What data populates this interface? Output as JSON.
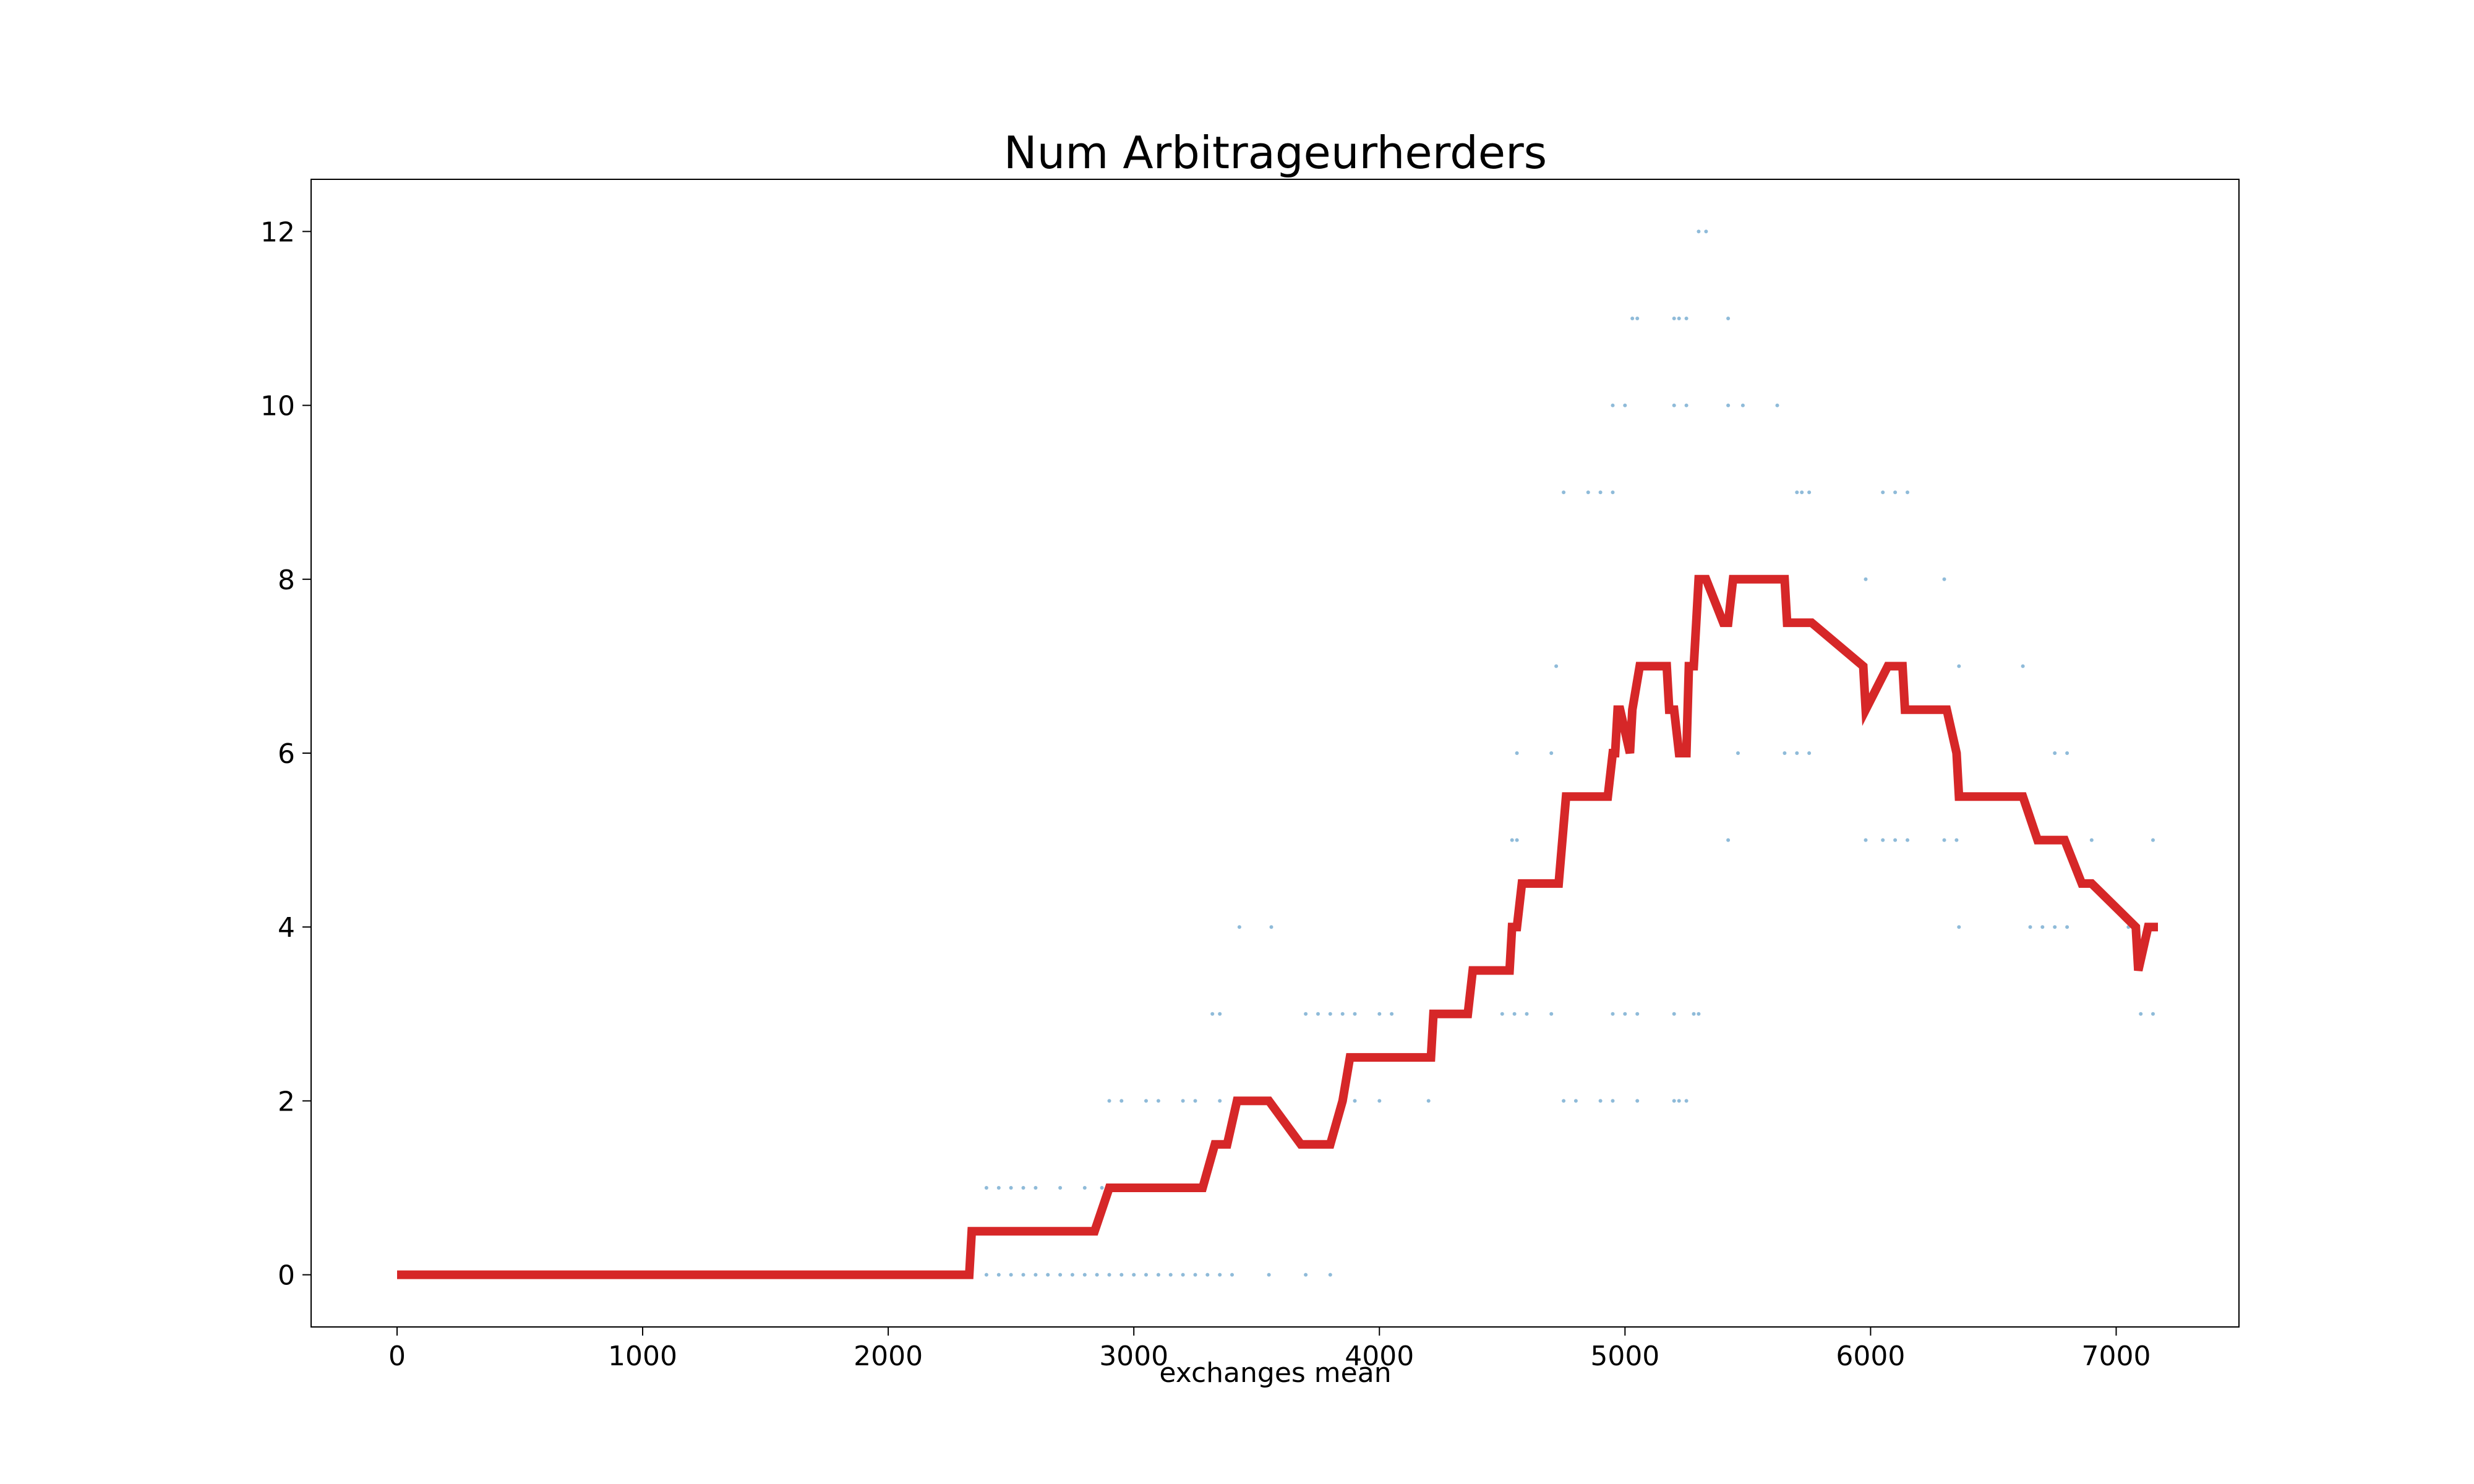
{
  "chart_data": {
    "type": "line",
    "title": "Num Arbitrageurherders",
    "xlabel": "exchanges mean",
    "ylabel": "",
    "xlim": [
      -350,
      7500
    ],
    "ylim": [
      -0.6,
      12.6
    ],
    "xticks": [
      0,
      1000,
      2000,
      3000,
      4000,
      5000,
      6000,
      7000
    ],
    "yticks": [
      0,
      2,
      4,
      6,
      8,
      10,
      12
    ],
    "grid": false,
    "line_color": "#d62728",
    "scatter_color": "#1f77b4",
    "series": [
      {
        "type": "line",
        "x": [
          0,
          2330,
          2340,
          2840,
          2900,
          3280,
          3330,
          3380,
          3420,
          3550,
          3680,
          3800,
          3850,
          3880,
          4210,
          4220,
          4360,
          4380,
          4530,
          4540,
          4560,
          4580,
          4730,
          4760,
          4930,
          4950,
          4960,
          4970,
          4980,
          5020,
          5030,
          5060,
          5170,
          5180,
          5200,
          5220,
          5250,
          5260,
          5280,
          5290,
          5300,
          5330,
          5400,
          5420,
          5440,
          5460,
          5470,
          5480,
          5650,
          5660,
          5760,
          5970,
          5980,
          6070,
          6130,
          6140,
          6310,
          6350,
          6360,
          6620,
          6680,
          6790,
          6860,
          6900,
          7080,
          7090,
          7130,
          7170
        ],
        "y": [
          0,
          0,
          0.5,
          0.5,
          1,
          1,
          1.5,
          1.5,
          2,
          2,
          1.5,
          1.5,
          2,
          2.5,
          2.5,
          3,
          3,
          3.5,
          3.5,
          4,
          4,
          4.5,
          4.5,
          5.5,
          5.5,
          6,
          6,
          6.5,
          6.5,
          6,
          6.5,
          7,
          7,
          6.5,
          6.5,
          6,
          6,
          7,
          7,
          7.5,
          8,
          8,
          7.5,
          7.5,
          8,
          8,
          8,
          8,
          8,
          7.5,
          7.5,
          7,
          6.5,
          7,
          7,
          6.5,
          6.5,
          6,
          5.5,
          5.5,
          5,
          5,
          4.5,
          4.5,
          4,
          3.5,
          4,
          4
        ]
      },
      {
        "type": "scatter",
        "x": [
          2400,
          2450,
          2500,
          2550,
          2600,
          2650,
          2700,
          2750,
          2800,
          2850,
          2900,
          2950,
          3000,
          3050,
          3100,
          3150,
          3200,
          3250,
          3300,
          3350,
          3400,
          3550,
          3700,
          3800,
          2400,
          2450,
          2500,
          2550,
          2600,
          2700,
          2800,
          2870,
          2900,
          2950,
          3050,
          3100,
          3200,
          3250,
          3350,
          3850,
          3900,
          4000,
          4200,
          4750,
          4800,
          4900,
          4950,
          5050,
          5200,
          5220,
          5250,
          3320,
          3350,
          3700,
          3750,
          3800,
          3850,
          3900,
          4000,
          4050,
          4500,
          4550,
          4600,
          4700,
          4950,
          5000,
          5050,
          5200,
          5280,
          5300,
          3430,
          3560,
          4550,
          6360,
          6650,
          6700,
          6750,
          6800,
          7050,
          4540,
          4560,
          5420,
          5980,
          6050,
          6100,
          6150,
          6300,
          6350,
          6900,
          7150,
          4560,
          4700,
          5460,
          5650,
          5700,
          5750,
          6750,
          6800,
          4720,
          6360,
          6620,
          5980,
          6300,
          4750,
          4850,
          4900,
          4950,
          5700,
          5720,
          5750,
          6050,
          6100,
          6150,
          4950,
          5000,
          5200,
          5250,
          5420,
          5480,
          5620,
          5030,
          5050,
          5200,
          5220,
          5250,
          5420,
          5300,
          5330,
          7100,
          7150
        ],
        "y": [
          0,
          0,
          0,
          0,
          0,
          0,
          0,
          0,
          0,
          0,
          0,
          0,
          0,
          0,
          0,
          0,
          0,
          0,
          0,
          0,
          0,
          0,
          0,
          0,
          1,
          1,
          1,
          1,
          1,
          1,
          1,
          1,
          2,
          2,
          2,
          2,
          2,
          2,
          2,
          2,
          2,
          2,
          2,
          2,
          2,
          2,
          2,
          2,
          2,
          2,
          2,
          3,
          3,
          3,
          3,
          3,
          3,
          3,
          3,
          3,
          3,
          3,
          3,
          3,
          3,
          3,
          3,
          3,
          3,
          3,
          4,
          4,
          4,
          4,
          4,
          4,
          4,
          4,
          4,
          5,
          5,
          5,
          5,
          5,
          5,
          5,
          5,
          5,
          5,
          5,
          6,
          6,
          6,
          6,
          6,
          6,
          6,
          6,
          7,
          7,
          7,
          8,
          8,
          9,
          9,
          9,
          9,
          9,
          9,
          9,
          9,
          9,
          9,
          10,
          10,
          10,
          10,
          10,
          10,
          10,
          11,
          11,
          11,
          11,
          11,
          11,
          12,
          12,
          3,
          3
        ]
      }
    ]
  }
}
